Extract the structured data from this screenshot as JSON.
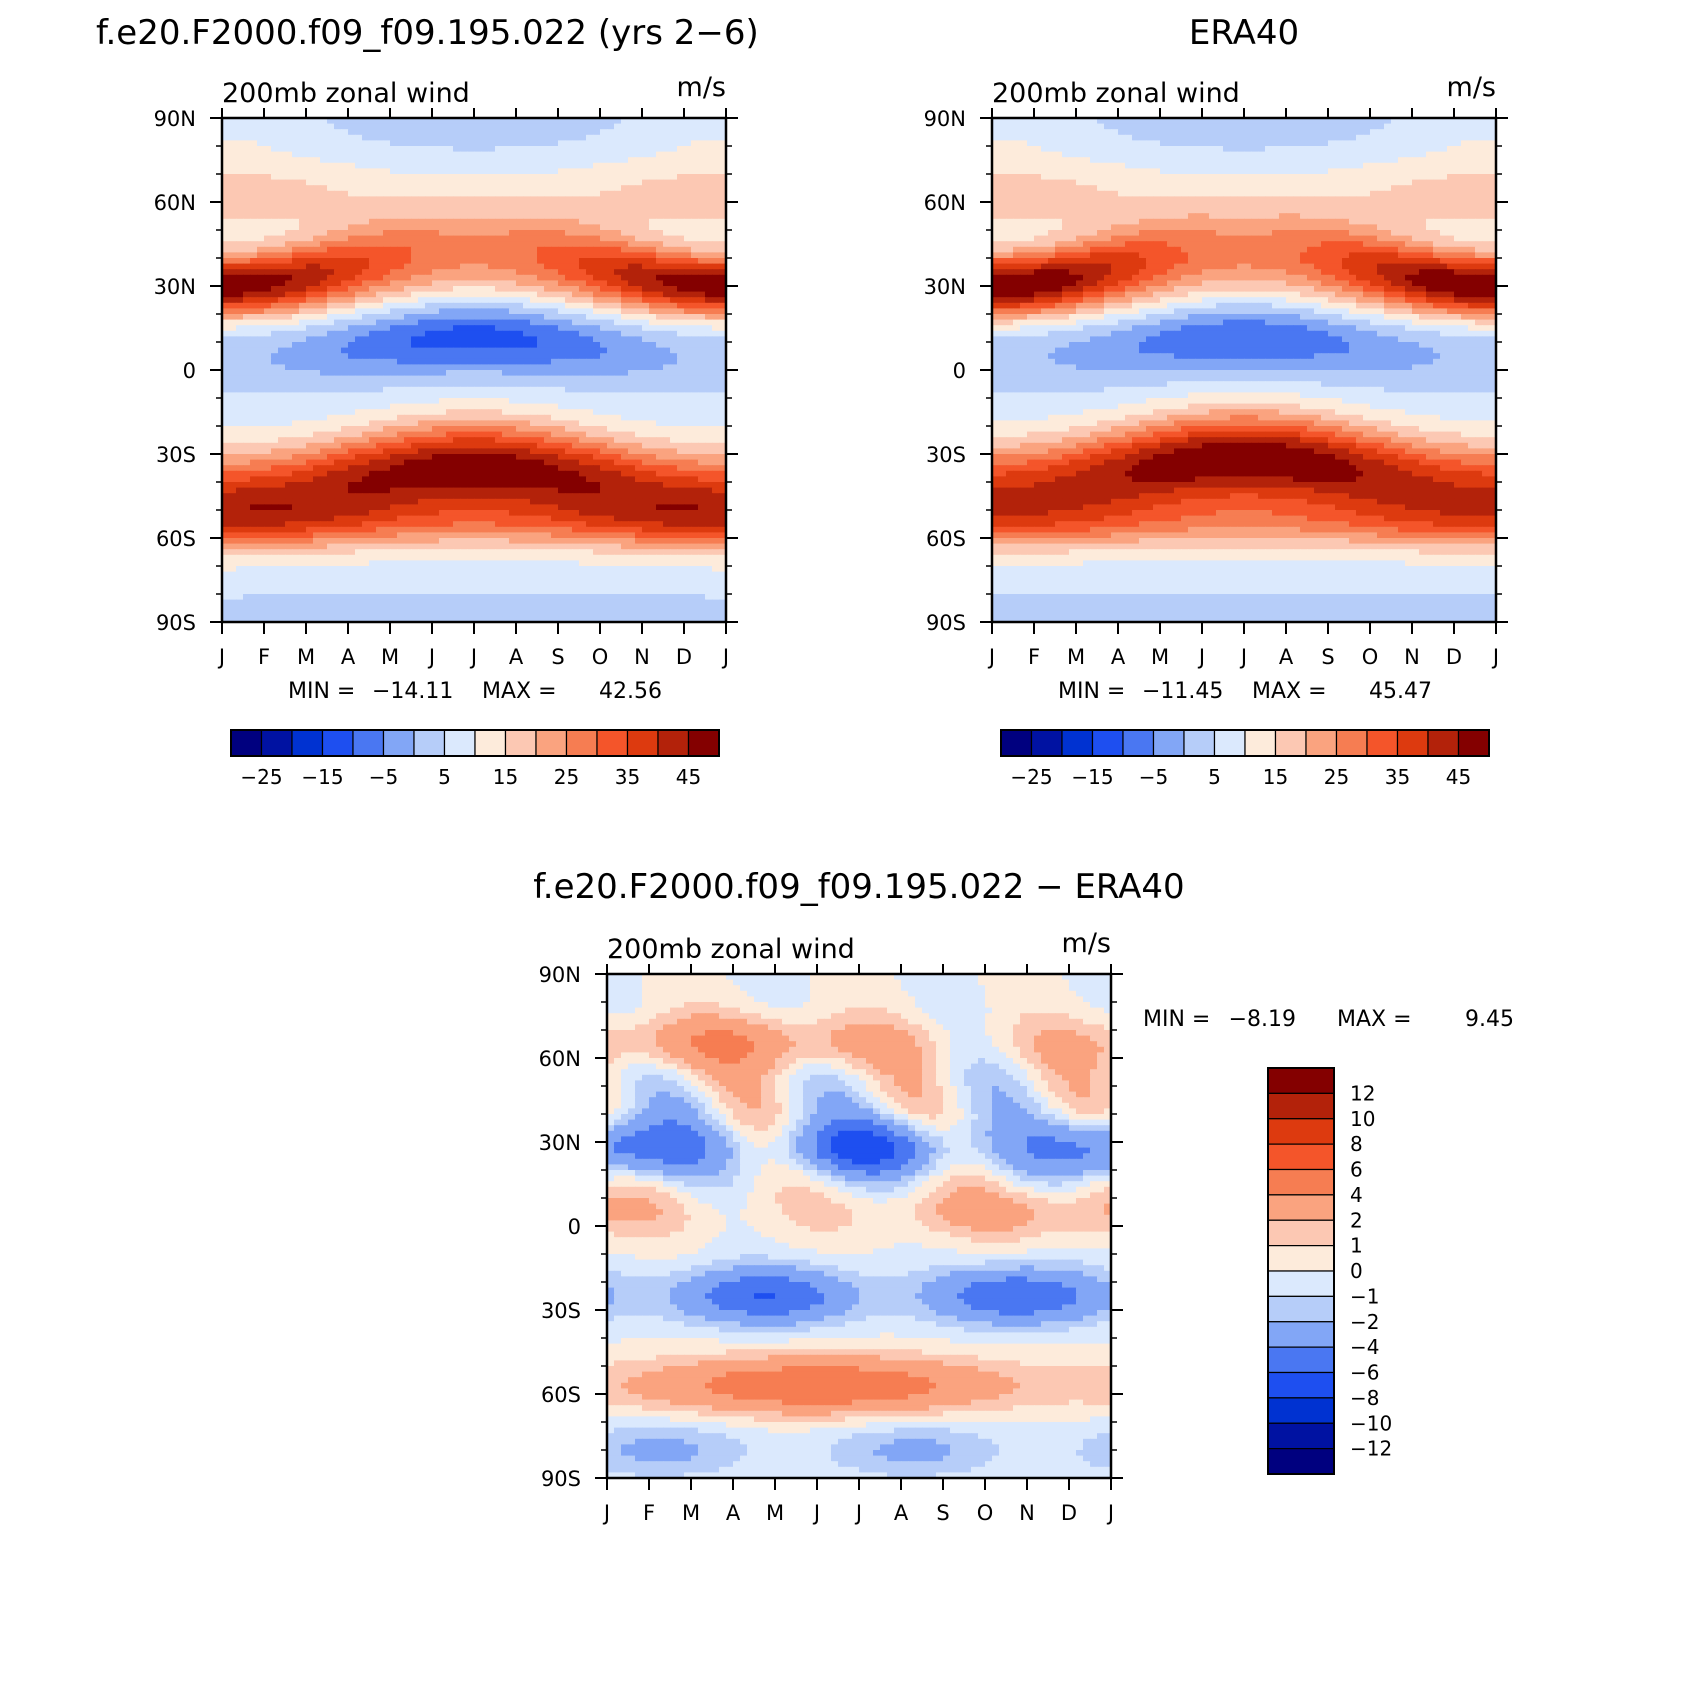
{
  "chart_data": [
    {
      "type": "heatmap",
      "title": "f.e20.F2000.f09_f09.195.022 (yrs 2−6)",
      "subtitle": "200mb zonal wind",
      "units": "m/s",
      "x_ticks": [
        "J",
        "F",
        "M",
        "A",
        "M",
        "J",
        "J",
        "A",
        "S",
        "O",
        "N",
        "D",
        "J"
      ],
      "y_ticks": [
        "90N",
        "60N",
        "30N",
        "0",
        "30S",
        "60S",
        "90S"
      ],
      "x_range": [
        "Jan",
        "Jan"
      ],
      "y_range": [
        90,
        -90
      ],
      "min_label": "MIN =",
      "min_value": "−14.11",
      "max_label": "MAX =",
      "max_value": "42.56",
      "min": -14.11,
      "max": 42.56,
      "colorbar": {
        "orientation": "horizontal",
        "labels": [
          "−25",
          "−15",
          "−5",
          "5",
          "15",
          "25",
          "35",
          "45"
        ],
        "colors": [
          "#00007f",
          "#0012a2",
          "#0032d1",
          "#1e4ff0",
          "#4a77f2",
          "#82a6f6",
          "#b6cdf9",
          "#dbe9fd",
          "#fdebdb",
          "#fcc8b3",
          "#faa37f",
          "#f67d52",
          "#f4552a",
          "#dd3a0f",
          "#b3220a",
          "#840000"
        ]
      },
      "jets": {
        "nh_subtropical_jet_lat": 30,
        "nh_jet_peak_winter": 42,
        "nh_jet_summer": 20,
        "sh_jet_lat": -35,
        "sh_jet_peak_winter": 42,
        "tropical_easterly_min": -14
      }
    },
    {
      "type": "heatmap",
      "title": "ERA40",
      "subtitle": "200mb zonal wind",
      "units": "m/s",
      "x_ticks": [
        "J",
        "F",
        "M",
        "A",
        "M",
        "J",
        "J",
        "A",
        "S",
        "O",
        "N",
        "D",
        "J"
      ],
      "y_ticks": [
        "90N",
        "60N",
        "30N",
        "0",
        "30S",
        "60S",
        "90S"
      ],
      "x_range": [
        "Jan",
        "Jan"
      ],
      "y_range": [
        90,
        -90
      ],
      "min_label": "MIN =",
      "min_value": "−11.45",
      "max_label": "MAX =",
      "max_value": "45.47",
      "min": -11.45,
      "max": 45.47,
      "colorbar": {
        "orientation": "horizontal",
        "labels": [
          "−25",
          "−15",
          "−5",
          "5",
          "15",
          "25",
          "35",
          "45"
        ],
        "colors": [
          "#00007f",
          "#0012a2",
          "#0032d1",
          "#1e4ff0",
          "#4a77f2",
          "#82a6f6",
          "#b6cdf9",
          "#dbe9fd",
          "#fdebdb",
          "#fcc8b3",
          "#faa37f",
          "#f67d52",
          "#f4552a",
          "#dd3a0f",
          "#b3220a",
          "#840000"
        ]
      },
      "jets": {
        "nh_subtropical_jet_lat": 30,
        "nh_jet_peak_winter": 45,
        "nh_jet_summer": 20,
        "sh_jet_lat": -32,
        "sh_jet_peak_winter": 44,
        "tropical_easterly_min": -11
      }
    },
    {
      "type": "heatmap",
      "title": "f.e20.F2000.f09_f09.195.022 − ERA40",
      "subtitle": "200mb zonal wind",
      "units": "m/s",
      "x_ticks": [
        "J",
        "F",
        "M",
        "A",
        "M",
        "J",
        "J",
        "A",
        "S",
        "O",
        "N",
        "D",
        "J"
      ],
      "y_ticks": [
        "90N",
        "60N",
        "30N",
        "0",
        "30S",
        "60S",
        "90S"
      ],
      "x_range": [
        "Jan",
        "Jan"
      ],
      "y_range": [
        90,
        -90
      ],
      "min_label": "MIN =",
      "min_value": "−8.19",
      "max_label": "MAX =",
      "max_value": "9.45",
      "min": -8.19,
      "max": 9.45,
      "colorbar": {
        "orientation": "vertical",
        "labels": [
          "12",
          "10",
          "8",
          "6",
          "4",
          "2",
          "1",
          "0",
          "−1",
          "−2",
          "−4",
          "−6",
          "−8",
          "−10",
          "−12"
        ],
        "colors": [
          "#840000",
          "#b3220a",
          "#dd3a0f",
          "#f4552a",
          "#f67d52",
          "#faa37f",
          "#fcc8b3",
          "#fdebdb",
          "#dbe9fd",
          "#b6cdf9",
          "#82a6f6",
          "#4a77f2",
          "#1e4ff0",
          "#0032d1",
          "#0012a2",
          "#00007f"
        ]
      },
      "bands": [
        {
          "lat": 65,
          "value": 3
        },
        {
          "lat": 28,
          "value": -5
        },
        {
          "lat": 5,
          "value": 2
        },
        {
          "lat": -25,
          "value": -5
        },
        {
          "lat": -57,
          "value": 5
        },
        {
          "lat": -80,
          "value": -2
        }
      ]
    }
  ]
}
